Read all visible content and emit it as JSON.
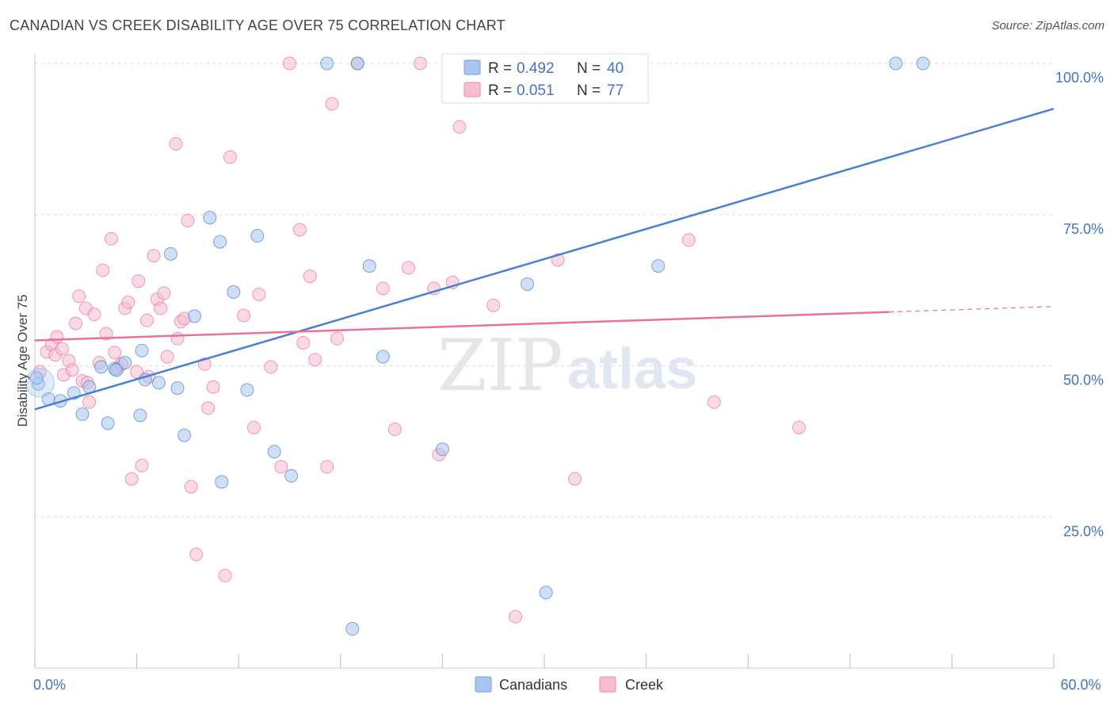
{
  "header": {
    "title": "CANADIAN VS CREEK DISABILITY AGE OVER 75 CORRELATION CHART",
    "source": "Source: ZipAtlas.com"
  },
  "watermark": {
    "zip": "ZIP",
    "atlas": "atlas"
  },
  "legend": {
    "r_label": "R =",
    "n_label": "N =",
    "rows": [
      {
        "r": "0.492",
        "n": "40",
        "color": "#a8c6ef",
        "stroke": "#6f9fe0"
      },
      {
        "r": "0.051",
        "n": "77",
        "color": "#f7bccd",
        "stroke": "#ee8aaa"
      }
    ]
  },
  "bottom_legend": [
    "Canadians",
    "Creek"
  ],
  "chart_data": {
    "type": "scatter",
    "title": "CANADIAN VS CREEK DISABILITY AGE OVER 75 CORRELATION CHART",
    "xlabel": "",
    "ylabel": "Disability Age Over 75",
    "xlim": [
      0,
      60
    ],
    "ylim": [
      0,
      100
    ],
    "x_tick_labels": [
      "0.0%",
      "60.0%"
    ],
    "y_ticks": [
      25,
      50,
      75,
      100
    ],
    "y_tick_labels": [
      "25.0%",
      "50.0%",
      "75.0%",
      "100.0%"
    ],
    "grid": true,
    "legend_position": "top-center",
    "series": [
      {
        "name": "Canadians",
        "color": "#4a7fd4",
        "fill": "#a8c6ef",
        "r": 0.492,
        "n": 40,
        "trend": {
          "x": [
            0,
            60
          ],
          "y": [
            42.8,
            92.5
          ]
        },
        "points": [
          [
            0.2,
            47.0
          ],
          [
            0.8,
            44.5
          ],
          [
            1.5,
            44.2
          ],
          [
            2.3,
            45.5
          ],
          [
            2.8,
            42.0
          ],
          [
            3.2,
            46.5
          ],
          [
            3.9,
            49.8
          ],
          [
            4.3,
            40.5
          ],
          [
            4.7,
            49.5
          ],
          [
            5.3,
            50.5
          ],
          [
            6.2,
            41.8
          ],
          [
            6.3,
            52.5
          ],
          [
            6.5,
            47.7
          ],
          [
            7.3,
            47.2
          ],
          [
            8.0,
            68.5
          ],
          [
            8.4,
            46.3
          ],
          [
            8.8,
            38.5
          ],
          [
            9.4,
            58.2
          ],
          [
            10.3,
            74.5
          ],
          [
            10.9,
            70.5
          ],
          [
            11.0,
            30.8
          ],
          [
            11.7,
            62.2
          ],
          [
            12.5,
            46.0
          ],
          [
            13.1,
            71.5
          ],
          [
            14.1,
            35.8
          ],
          [
            15.1,
            31.8
          ],
          [
            17.2,
            100.0
          ],
          [
            18.7,
            6.5
          ],
          [
            19.0,
            100.0
          ],
          [
            19.7,
            66.5
          ],
          [
            20.5,
            51.5
          ],
          [
            24.0,
            36.2
          ],
          [
            29.0,
            63.5
          ],
          [
            30.1,
            12.5
          ],
          [
            35.2,
            100.0
          ],
          [
            36.7,
            66.5
          ],
          [
            50.7,
            100.0
          ],
          [
            52.3,
            100.0
          ],
          [
            0.1,
            48.0
          ],
          [
            4.8,
            49.3
          ]
        ]
      },
      {
        "name": "Creek",
        "color": "#e8709a",
        "fill": "#f7bccd",
        "r": 0.051,
        "n": 77,
        "trend": {
          "x": [
            0,
            50.3
          ],
          "y": [
            54.2,
            58.9
          ]
        },
        "trend_dashed": {
          "x": [
            50.3,
            60
          ],
          "y": [
            58.9,
            59.8
          ]
        },
        "points": [
          [
            0.3,
            49.0
          ],
          [
            0.7,
            52.3
          ],
          [
            1.0,
            53.5
          ],
          [
            1.2,
            51.8
          ],
          [
            1.6,
            52.8
          ],
          [
            1.7,
            48.5
          ],
          [
            2.0,
            50.8
          ],
          [
            2.2,
            49.3
          ],
          [
            2.4,
            57.0
          ],
          [
            2.6,
            61.5
          ],
          [
            2.8,
            47.5
          ],
          [
            3.0,
            59.5
          ],
          [
            3.2,
            44.0
          ],
          [
            3.5,
            58.5
          ],
          [
            3.8,
            50.5
          ],
          [
            4.0,
            65.8
          ],
          [
            4.2,
            55.3
          ],
          [
            4.5,
            71.0
          ],
          [
            4.7,
            52.2
          ],
          [
            4.9,
            49.7
          ],
          [
            5.3,
            59.5
          ],
          [
            5.5,
            60.5
          ],
          [
            5.7,
            31.3
          ],
          [
            6.0,
            49.0
          ],
          [
            6.1,
            64.0
          ],
          [
            6.3,
            33.5
          ],
          [
            6.6,
            57.5
          ],
          [
            6.7,
            48.2
          ],
          [
            7.0,
            68.2
          ],
          [
            7.2,
            61.0
          ],
          [
            7.4,
            59.5
          ],
          [
            7.6,
            62.0
          ],
          [
            7.8,
            51.5
          ],
          [
            8.3,
            86.7
          ],
          [
            8.4,
            54.5
          ],
          [
            8.6,
            57.3
          ],
          [
            8.8,
            57.8
          ],
          [
            9.0,
            74.0
          ],
          [
            9.2,
            30.0
          ],
          [
            9.5,
            18.8
          ],
          [
            10.0,
            50.3
          ],
          [
            10.2,
            43.0
          ],
          [
            10.5,
            46.5
          ],
          [
            11.2,
            15.3
          ],
          [
            11.5,
            84.5
          ],
          [
            12.3,
            58.3
          ],
          [
            12.9,
            39.8
          ],
          [
            13.2,
            61.8
          ],
          [
            13.9,
            49.8
          ],
          [
            14.5,
            33.3
          ],
          [
            15.0,
            100.0
          ],
          [
            15.6,
            72.5
          ],
          [
            15.8,
            53.8
          ],
          [
            16.2,
            64.8
          ],
          [
            16.5,
            51.0
          ],
          [
            17.2,
            33.3
          ],
          [
            17.5,
            93.3
          ],
          [
            17.8,
            54.5
          ],
          [
            19.0,
            100.0
          ],
          [
            20.5,
            62.8
          ],
          [
            21.2,
            39.5
          ],
          [
            22.0,
            66.2
          ],
          [
            22.7,
            100.0
          ],
          [
            23.5,
            62.8
          ],
          [
            23.8,
            35.3
          ],
          [
            24.6,
            63.8
          ],
          [
            25.0,
            89.5
          ],
          [
            27.0,
            60.0
          ],
          [
            28.3,
            8.5
          ],
          [
            30.8,
            67.5
          ],
          [
            31.8,
            31.3
          ],
          [
            38.5,
            70.8
          ],
          [
            40.0,
            44.0
          ],
          [
            45.0,
            39.8
          ],
          [
            1.3,
            54.8
          ],
          [
            3.1,
            47.2
          ],
          [
            5.1,
            50.3
          ]
        ]
      }
    ]
  }
}
